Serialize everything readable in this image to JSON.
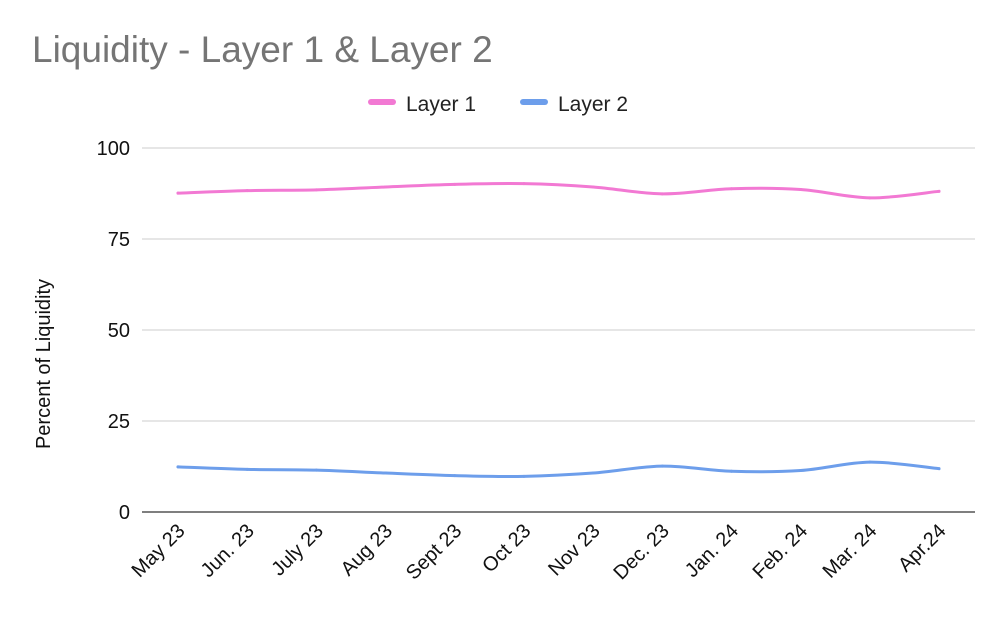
{
  "chart_data": {
    "type": "line",
    "title": "Liquidity - Layer 1 & Layer 2",
    "xlabel": "",
    "ylabel": "Percent of Liquidity",
    "categories": [
      "May 23",
      "Jun. 23",
      "July 23",
      "Aug 23",
      "Sept 23",
      "Oct 23",
      "Nov 23",
      "Dec. 23",
      "Jan. 24",
      "Feb. 24",
      "Mar. 24",
      "Apr.24"
    ],
    "ylim": [
      0,
      100
    ],
    "yticks": [
      "0",
      "25",
      "50",
      "75",
      "100"
    ],
    "grid": true,
    "legend_position": "top",
    "series": [
      {
        "name": "Layer 1",
        "color": "#f279d3",
        "values": [
          87.6,
          88.3,
          88.5,
          89.3,
          90.0,
          90.2,
          89.3,
          87.4,
          88.8,
          88.6,
          86.3,
          88.1
        ]
      },
      {
        "name": "Layer 2",
        "color": "#6d9eeb",
        "values": [
          12.4,
          11.7,
          11.5,
          10.7,
          10.0,
          9.8,
          10.7,
          12.6,
          11.2,
          11.4,
          13.7,
          11.9
        ]
      }
    ]
  }
}
